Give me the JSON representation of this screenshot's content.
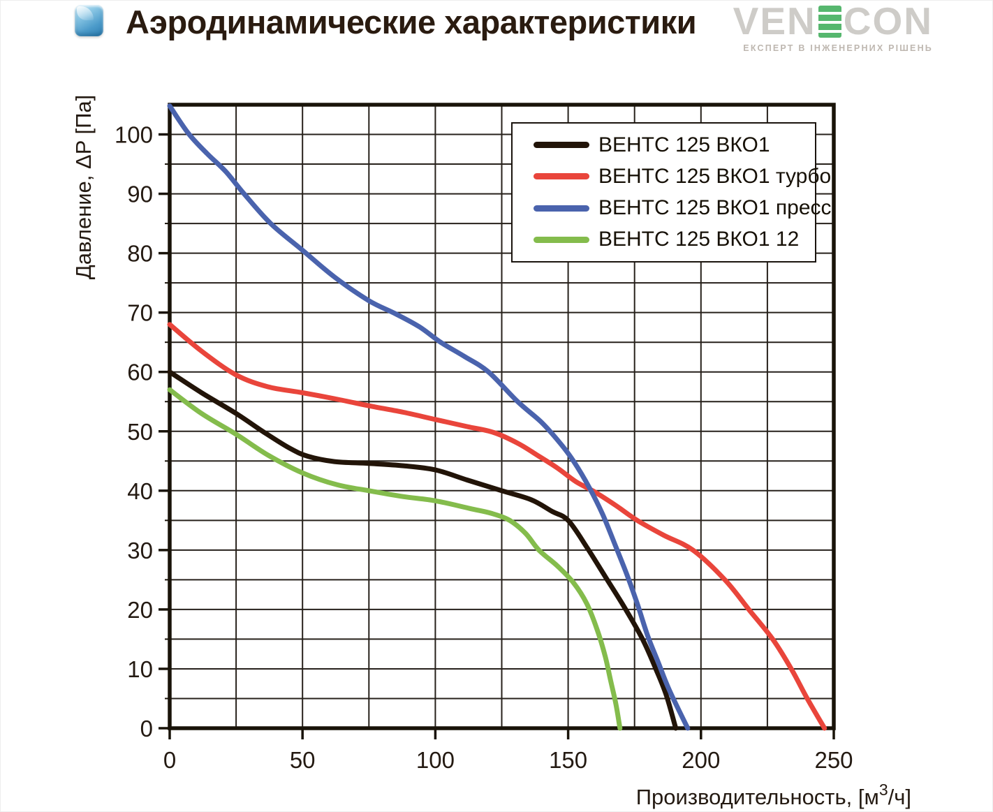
{
  "header": {
    "title": "Аэродинамические характеристики",
    "watermark": {
      "pre": "VEN",
      "post": "CON",
      "tagline": "ЕКСПЕРТ В ІНЖЕНЕРНИХ РІШЕНЬ"
    }
  },
  "chart_data": {
    "type": "line",
    "title": "Аэродинамические характеристики",
    "xlabel": {
      "prefix": "Производительность, [м",
      "sup": "3",
      "suffix": "/ч]"
    },
    "ylabel": "Давление, ΔP [Па]",
    "xlim": [
      0,
      250
    ],
    "ylim": [
      0,
      105
    ],
    "x_major_ticks": [
      0,
      50,
      100,
      150,
      200,
      250
    ],
    "y_major_ticks": [
      0,
      10,
      20,
      30,
      40,
      50,
      60,
      70,
      80,
      90,
      100
    ],
    "grid": {
      "x_step": 25,
      "y_step": 5,
      "on": true
    },
    "legend_position": "top-right",
    "colors": {
      "grid": "#27211b",
      "frame": "#191309",
      "text": "#241a12"
    },
    "series": [
      {
        "name": "ВЕНТС 125 ВКО1",
        "color": "#221408",
        "points": [
          [
            0,
            60
          ],
          [
            12,
            56.5
          ],
          [
            25,
            53
          ],
          [
            35,
            50
          ],
          [
            45,
            47.2
          ],
          [
            52,
            45.8
          ],
          [
            62,
            44.9
          ],
          [
            75,
            44.6
          ],
          [
            88,
            44.2
          ],
          [
            100,
            43.5
          ],
          [
            112,
            41.8
          ],
          [
            125,
            40
          ],
          [
            136,
            38.5
          ],
          [
            144,
            36.5
          ],
          [
            150,
            35
          ],
          [
            157,
            30.5
          ],
          [
            164,
            25.5
          ],
          [
            171,
            20.5
          ],
          [
            178,
            15
          ],
          [
            183,
            10
          ],
          [
            187,
            5.5
          ],
          [
            190.5,
            0
          ]
        ]
      },
      {
        "name": "ВЕНТС 125 ВКО1 турбо",
        "color": "#e9453b",
        "points": [
          [
            0,
            68
          ],
          [
            12,
            63.5
          ],
          [
            25,
            59.5
          ],
          [
            37,
            57.5
          ],
          [
            50,
            56.5
          ],
          [
            62,
            55.5
          ],
          [
            75,
            54.3
          ],
          [
            88,
            53.2
          ],
          [
            100,
            52
          ],
          [
            112,
            50.8
          ],
          [
            122,
            49.8
          ],
          [
            131,
            48
          ],
          [
            139,
            45.8
          ],
          [
            146,
            43.8
          ],
          [
            153,
            41.5
          ],
          [
            160,
            39.8
          ],
          [
            168,
            37.5
          ],
          [
            176,
            35
          ],
          [
            186,
            32.5
          ],
          [
            197,
            30
          ],
          [
            209,
            25
          ],
          [
            218,
            20
          ],
          [
            227,
            15
          ],
          [
            234,
            10
          ],
          [
            240,
            5
          ],
          [
            246.5,
            0
          ]
        ]
      },
      {
        "name": "ВЕНТС 125 ВКО1 пресс",
        "color": "#4a63ad",
        "points": [
          [
            0,
            104.8
          ],
          [
            7,
            100.2
          ],
          [
            14,
            96.8
          ],
          [
            21,
            93.8
          ],
          [
            28,
            90
          ],
          [
            38,
            85
          ],
          [
            50,
            80.5
          ],
          [
            62,
            76
          ],
          [
            75,
            72
          ],
          [
            85,
            69.8
          ],
          [
            94,
            67.6
          ],
          [
            102,
            65
          ],
          [
            111,
            62.6
          ],
          [
            120,
            60
          ],
          [
            131,
            55
          ],
          [
            140,
            51.5
          ],
          [
            147,
            48
          ],
          [
            152,
            45
          ],
          [
            158,
            40.5
          ],
          [
            163,
            36
          ],
          [
            168,
            30.5
          ],
          [
            172,
            26
          ],
          [
            176,
            21
          ],
          [
            180,
            15.5
          ],
          [
            184,
            11
          ],
          [
            188,
            6.5
          ],
          [
            195,
            0
          ]
        ]
      },
      {
        "name": "ВЕНТС 125 ВКО1 12",
        "color": "#84bc4c",
        "points": [
          [
            0,
            57
          ],
          [
            12,
            53
          ],
          [
            25,
            49.5
          ],
          [
            37,
            46
          ],
          [
            50,
            43
          ],
          [
            63,
            41
          ],
          [
            75,
            40
          ],
          [
            88,
            39
          ],
          [
            100,
            38.3
          ],
          [
            113,
            37
          ],
          [
            121,
            36.2
          ],
          [
            128,
            35
          ],
          [
            134,
            32.8
          ],
          [
            139,
            30
          ],
          [
            146,
            27.3
          ],
          [
            152,
            24.5
          ],
          [
            157,
            21
          ],
          [
            161,
            16.5
          ],
          [
            164,
            12
          ],
          [
            166,
            8
          ],
          [
            168,
            4
          ],
          [
            169.5,
            0
          ]
        ]
      }
    ]
  }
}
